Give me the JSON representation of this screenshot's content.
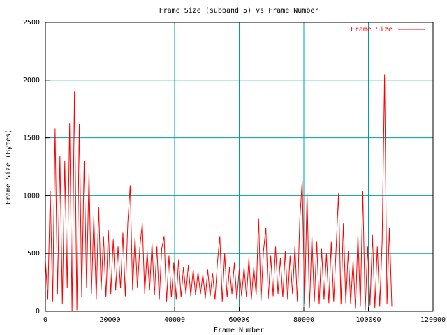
{
  "chart_data": {
    "type": "line",
    "title": "Frame Size (subband 5) vs Frame Number",
    "x_label": "Frame Number",
    "y_label": "Frame Size (Bytes)",
    "x": [
      0,
      750,
      1500,
      2250,
      3000,
      3750,
      4500,
      5250,
      6000,
      6750,
      7500,
      8250,
      9000,
      9750,
      10500,
      11250,
      12000,
      12750,
      13500,
      14250,
      15000,
      15750,
      16500,
      17250,
      18000,
      18750,
      19500,
      20250,
      21000,
      21750,
      22500,
      23250,
      24000,
      24750,
      25500,
      26250,
      27000,
      27750,
      28500,
      29250,
      30000,
      30750,
      31500,
      32250,
      33000,
      33750,
      34500,
      35250,
      36000,
      36750,
      37500,
      38250,
      39000,
      39750,
      40500,
      41250,
      42000,
      42750,
      43500,
      44250,
      45000,
      45750,
      46500,
      47250,
      48000,
      48750,
      49500,
      50250,
      51000,
      51750,
      52500,
      53250,
      54000,
      54750,
      55500,
      56250,
      57000,
      57750,
      58500,
      59250,
      60000,
      60750,
      61500,
      62250,
      63000,
      63750,
      64500,
      65250,
      66000,
      66750,
      67500,
      68250,
      69000,
      69750,
      70500,
      71250,
      72000,
      72750,
      73500,
      74250,
      75000,
      75750,
      76500,
      77250,
      78000,
      78750,
      79500,
      80250,
      81000,
      81750,
      82500,
      83250,
      84000,
      84750,
      85500,
      86250,
      87000,
      87750,
      88500,
      89250,
      90000,
      90750,
      91500,
      92250,
      93000,
      93750,
      94500,
      95250,
      96000,
      96750,
      97500,
      98250,
      99000,
      99750,
      100500,
      101250,
      102000,
      102750,
      103500,
      104250,
      105000,
      105750,
      106500,
      107250
    ],
    "series": [
      {
        "name": "Frame Size",
        "color": "#ff0000",
        "values": [
          450,
          100,
          1040,
          80,
          1580,
          150,
          1340,
          60,
          1300,
          200,
          1630,
          0,
          1900,
          10,
          1620,
          120,
          1300,
          200,
          1200,
          150,
          820,
          100,
          900,
          180,
          650,
          120,
          700,
          150,
          620,
          180,
          560,
          200,
          680,
          130,
          760,
          1090,
          180,
          640,
          200,
          560,
          760,
          150,
          520,
          180,
          590,
          140,
          560,
          100,
          540,
          650,
          80,
          480,
          120,
          420,
          100,
          450,
          120,
          380,
          150,
          400,
          130,
          360,
          140,
          340,
          150,
          320,
          110,
          360,
          130,
          330,
          100,
          420,
          650,
          80,
          500,
          120,
          380,
          150,
          420,
          100,
          360,
          130,
          380,
          120,
          460,
          100,
          380,
          140,
          800,
          90,
          520,
          720,
          110,
          480,
          130,
          560,
          150,
          460,
          120,
          520,
          100,
          480,
          150,
          560,
          80,
          790,
          1130,
          60,
          1020,
          30,
          650,
          80,
          600,
          60,
          540,
          100,
          500,
          70,
          600,
          80,
          540,
          1020,
          60,
          760,
          70,
          520,
          60,
          440,
          20,
          660,
          40,
          1040,
          10,
          560,
          50,
          660,
          30,
          560,
          40,
          600,
          2050,
          60,
          720,
          40
        ]
      }
    ],
    "xlim": [
      0,
      120000
    ],
    "ylim": [
      0,
      2500
    ],
    "xticks": [
      0,
      20000,
      40000,
      60000,
      80000,
      100000,
      120000
    ],
    "yticks": [
      0,
      500,
      1000,
      1500,
      2000,
      2500
    ],
    "grid": true,
    "legend": "top right"
  }
}
